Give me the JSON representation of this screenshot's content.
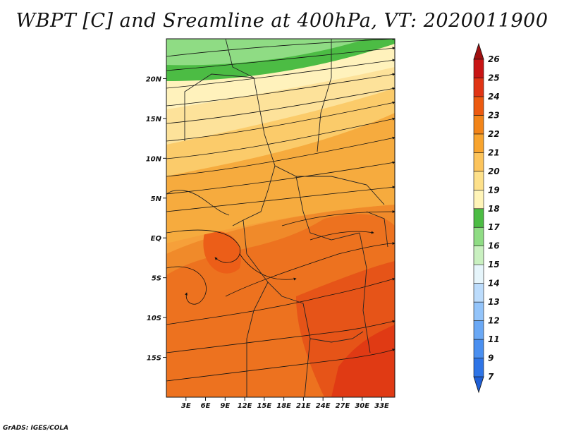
{
  "title": "WBPT [C] and Sreamline at 400hPa, VT: 2020011900",
  "credit": "GrADS: IGES/COLA",
  "map": {
    "lon_range": [
      0,
      35
    ],
    "lat_range": [
      -20,
      25
    ],
    "x_ticks": [
      "3E",
      "6E",
      "9E",
      "12E",
      "15E",
      "18E",
      "21E",
      "24E",
      "27E",
      "30E",
      "33E"
    ],
    "x_tick_values": [
      3,
      6,
      9,
      12,
      15,
      18,
      21,
      24,
      27,
      30,
      33
    ],
    "y_ticks": [
      "20N",
      "15N",
      "10N",
      "5N",
      "EQ",
      "5S",
      "10S",
      "15S"
    ],
    "y_tick_values": [
      20,
      15,
      10,
      5,
      0,
      -5,
      -10,
      -15
    ]
  },
  "colorbar": {
    "labels": [
      "7",
      "9",
      "11",
      "12",
      "13",
      "14",
      "15",
      "16",
      "17",
      "18",
      "19",
      "20",
      "21",
      "22",
      "23",
      "24",
      "25",
      "26"
    ],
    "colors": [
      "#1f5fd6",
      "#2e74e6",
      "#4a8ff0",
      "#6aa8f5",
      "#93c4fa",
      "#bcdcfc",
      "#e6f5fb",
      "#c9f0c0",
      "#8fdc84",
      "#4cbc44",
      "#fff4b8",
      "#fde08a",
      "#fcc45c",
      "#f8a42e",
      "#f28418",
      "#ec5a10",
      "#e03414",
      "#c81414",
      "#a01010"
    ]
  }
}
